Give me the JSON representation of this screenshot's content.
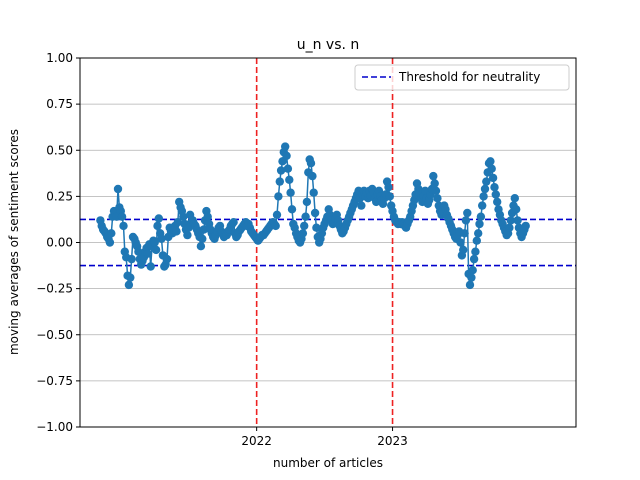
{
  "chart_data": {
    "type": "line",
    "title": "u_n vs. n",
    "xlabel": "number of articles",
    "ylabel": "moving averages of sentiment scores",
    "xlim": [
      -10,
      355
    ],
    "ylim": [
      -1.0,
      1.0
    ],
    "x_ticks": [
      {
        "value": 120,
        "label": "2022"
      },
      {
        "value": 220,
        "label": "2023"
      }
    ],
    "y_ticks": [
      {
        "value": -1.0,
        "label": "−1.00"
      },
      {
        "value": -0.75,
        "label": "−0.75"
      },
      {
        "value": -0.5,
        "label": "−0.50"
      },
      {
        "value": -0.25,
        "label": "−0.25"
      },
      {
        "value": 0.0,
        "label": "0.00"
      },
      {
        "value": 0.25,
        "label": "0.25"
      },
      {
        "value": 0.5,
        "label": "0.50"
      },
      {
        "value": 0.75,
        "label": "0.75"
      },
      {
        "value": 1.0,
        "label": "1.00"
      }
    ],
    "grid": "horizontal",
    "thresholds": {
      "upper": 0.125,
      "lower": -0.125,
      "color": "#0000cc"
    },
    "year_markers": {
      "values": [
        120,
        220
      ],
      "color": "#ee2222"
    },
    "legend": {
      "position": "top-right",
      "entries": [
        {
          "label": "Threshold for neutrality",
          "style": "blue-dashed"
        }
      ]
    },
    "series": [
      {
        "color": "#1f77b4",
        "x_start": 5,
        "x_step": 1,
        "y": [
          0.12,
          0.09,
          0.07,
          0.06,
          0.05,
          0.03,
          0.02,
          0.0,
          0.05,
          0.14,
          0.17,
          0.16,
          0.14,
          0.29,
          0.19,
          0.17,
          0.14,
          0.09,
          -0.05,
          -0.08,
          -0.18,
          -0.23,
          -0.19,
          -0.09,
          0.03,
          0.02,
          0.0,
          -0.02,
          -0.05,
          -0.09,
          -0.12,
          -0.1,
          -0.08,
          -0.05,
          -0.03,
          -0.06,
          -0.01,
          -0.13,
          -0.02,
          0.01,
          0.0,
          -0.04,
          0.09,
          0.13,
          0.05,
          0.02,
          -0.07,
          -0.13,
          -0.12,
          -0.09,
          0.03,
          0.08,
          0.06,
          0.05,
          0.07,
          0.09,
          0.06,
          0.11,
          0.22,
          0.19,
          0.17,
          0.14,
          0.1,
          0.07,
          0.04,
          0.08,
          0.15,
          0.11,
          0.12,
          0.1,
          0.09,
          0.07,
          0.05,
          0.03,
          -0.02,
          0.02,
          0.07,
          0.12,
          0.17,
          0.14,
          0.1,
          0.07,
          0.05,
          0.03,
          0.02,
          0.04,
          0.06,
          0.08,
          0.09,
          0.06,
          0.05,
          0.03,
          0.05,
          0.04,
          0.06,
          0.07,
          0.09,
          0.1,
          0.11,
          0.05,
          0.03,
          0.04,
          0.06,
          0.07,
          0.08,
          0.09,
          0.1,
          0.11,
          0.09,
          0.1,
          0.08,
          0.06,
          0.05,
          0.04,
          0.03,
          0.02,
          0.01,
          0.02,
          0.03,
          0.04,
          0.04,
          0.05,
          0.06,
          0.07,
          0.08,
          0.09,
          0.1,
          0.11,
          0.1,
          0.09,
          0.15,
          0.25,
          0.33,
          0.39,
          0.44,
          0.49,
          0.52,
          0.47,
          0.4,
          0.34,
          0.27,
          0.18,
          0.1,
          0.08,
          0.05,
          0.03,
          0.01,
          0.0,
          0.02,
          0.05,
          0.09,
          0.14,
          0.22,
          0.38,
          0.45,
          0.43,
          0.36,
          0.27,
          0.16,
          0.08,
          0.03,
          0.0,
          0.02,
          0.05,
          0.08,
          0.1,
          0.12,
          0.14,
          0.18,
          0.15,
          0.12,
          0.1,
          0.11,
          0.13,
          0.15,
          0.12,
          0.09,
          0.07,
          0.05,
          0.06,
          0.08,
          0.1,
          0.12,
          0.14,
          0.16,
          0.18,
          0.2,
          0.22,
          0.24,
          0.26,
          0.28,
          0.24,
          0.2,
          0.26,
          0.28,
          0.25,
          0.27,
          0.24,
          0.28,
          0.25,
          0.29,
          0.27,
          0.24,
          0.22,
          0.26,
          0.28,
          0.25,
          0.23,
          0.21,
          0.24,
          0.26,
          0.33,
          0.3,
          0.25,
          0.2,
          0.17,
          0.14,
          0.12,
          0.11,
          0.1,
          0.11,
          0.1,
          0.11,
          0.1,
          0.09,
          0.08,
          0.1,
          0.12,
          0.14,
          0.17,
          0.2,
          0.23,
          0.26,
          0.32,
          0.29,
          0.27,
          0.24,
          0.22,
          0.25,
          0.28,
          0.24,
          0.21,
          0.23,
          0.26,
          0.29,
          0.36,
          0.32,
          0.28,
          0.24,
          0.2,
          0.17,
          0.15,
          0.17,
          0.2,
          0.18,
          0.15,
          0.13,
          0.11,
          0.09,
          0.07,
          0.05,
          0.03,
          0.02,
          0.04,
          0.06,
          0.0,
          -0.07,
          -0.04,
          0.05,
          0.12,
          0.16,
          -0.17,
          -0.23,
          -0.19,
          -0.15,
          -0.09,
          -0.05,
          0.01,
          0.05,
          0.1,
          0.14,
          0.2,
          0.25,
          0.29,
          0.33,
          0.38,
          0.43,
          0.44,
          0.4,
          0.35,
          0.3,
          0.26,
          0.22,
          0.18,
          0.15,
          0.12,
          0.1,
          0.08,
          0.06,
          0.04,
          0.05,
          0.08,
          0.12,
          0.16,
          0.2,
          0.24,
          0.18,
          0.12,
          0.08,
          0.05,
          0.03,
          0.05,
          0.07,
          0.09
        ]
      }
    ]
  }
}
